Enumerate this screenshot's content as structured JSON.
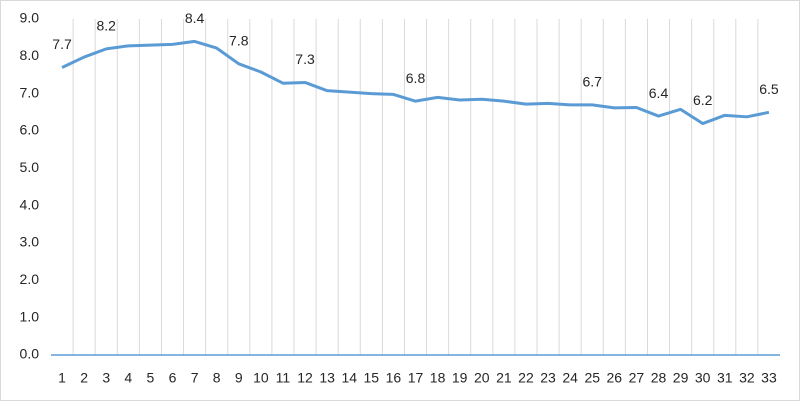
{
  "chart_data": {
    "type": "line",
    "categories": [
      "1",
      "2",
      "3",
      "4",
      "5",
      "6",
      "7",
      "8",
      "9",
      "10",
      "11",
      "12",
      "13",
      "14",
      "15",
      "16",
      "17",
      "18",
      "19",
      "20",
      "21",
      "22",
      "23",
      "24",
      "25",
      "26",
      "27",
      "28",
      "29",
      "30",
      "31",
      "32",
      "33"
    ],
    "series": [
      {
        "color": "#5b9bd5",
        "values": [
          7.7,
          7.98,
          8.2,
          8.28,
          8.3,
          8.32,
          8.4,
          8.22,
          7.8,
          7.58,
          7.28,
          7.3,
          7.08,
          7.04,
          7.0,
          6.98,
          6.8,
          6.9,
          6.83,
          6.85,
          6.8,
          6.72,
          6.74,
          6.7,
          6.7,
          6.62,
          6.63,
          6.4,
          6.58,
          6.2,
          6.42,
          6.38,
          6.5
        ],
        "value_labels": [
          "7.7",
          null,
          "8.2",
          null,
          null,
          null,
          "8.4",
          null,
          "7.8",
          null,
          null,
          "7.3",
          null,
          null,
          null,
          null,
          "6.8",
          null,
          null,
          null,
          null,
          null,
          null,
          null,
          "6.7",
          null,
          null,
          "6.4",
          null,
          "6.2",
          null,
          null,
          "6.5"
        ]
      }
    ],
    "ylim": [
      0,
      9
    ],
    "yticks": [
      {
        "value": 0,
        "label": "0.0"
      },
      {
        "value": 1,
        "label": "1.0"
      },
      {
        "value": 2,
        "label": "2.0"
      },
      {
        "value": 3,
        "label": "3.0"
      },
      {
        "value": 4,
        "label": "4.0"
      },
      {
        "value": 5,
        "label": "5.0"
      },
      {
        "value": 6,
        "label": "6.0"
      },
      {
        "value": 7,
        "label": "7.0"
      },
      {
        "value": 8,
        "label": "8.0"
      },
      {
        "value": 9,
        "label": "9.0"
      }
    ],
    "grid": true
  }
}
